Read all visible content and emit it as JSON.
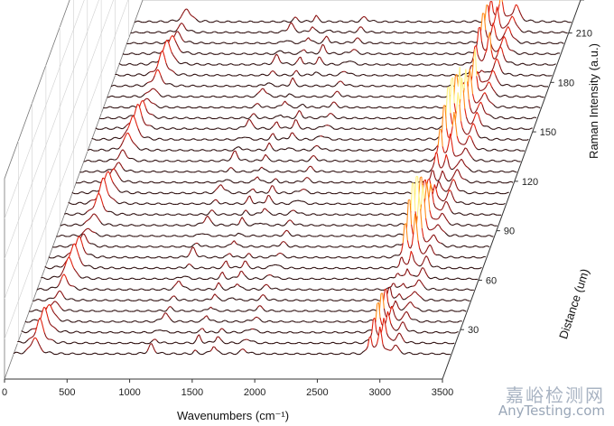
{
  "chart_data": {
    "type": "line",
    "subtype": "3d-waterfall",
    "xlabel": "Wavenumbers (cm⁻¹)",
    "ylabel": "Raman Intensity (a.u.)",
    "zlabel": "Distance (um)",
    "x_ticks": [
      "0",
      "500",
      "1000",
      "1500",
      "2000",
      "2500",
      "3000",
      "3500"
    ],
    "xlim": [
      0,
      3500
    ],
    "z_ticks": [
      "30",
      "60",
      "90",
      "120",
      "150",
      "180",
      "210"
    ],
    "zlim": [
      15,
      220
    ],
    "grid": true,
    "series_count": 32,
    "series_distance_start": 15,
    "series_distance_step": 6.5,
    "color_scale": [
      "#2a0a0a",
      "#8a1010",
      "#e0200e",
      "#ff8c1a",
      "#fff080"
    ],
    "peaks_cm1": [
      {
        "x": 250,
        "label": ""
      },
      {
        "x": 1100,
        "label": ""
      },
      {
        "x": 1450,
        "label": ""
      },
      {
        "x": 1600,
        "label": ""
      },
      {
        "x": 2850,
        "label": ""
      },
      {
        "x": 2930,
        "label": ""
      },
      {
        "x": 3050,
        "label": ""
      }
    ]
  },
  "watermark": {
    "line1": "嘉峪检测网",
    "line2": "AnyTesting.com"
  }
}
